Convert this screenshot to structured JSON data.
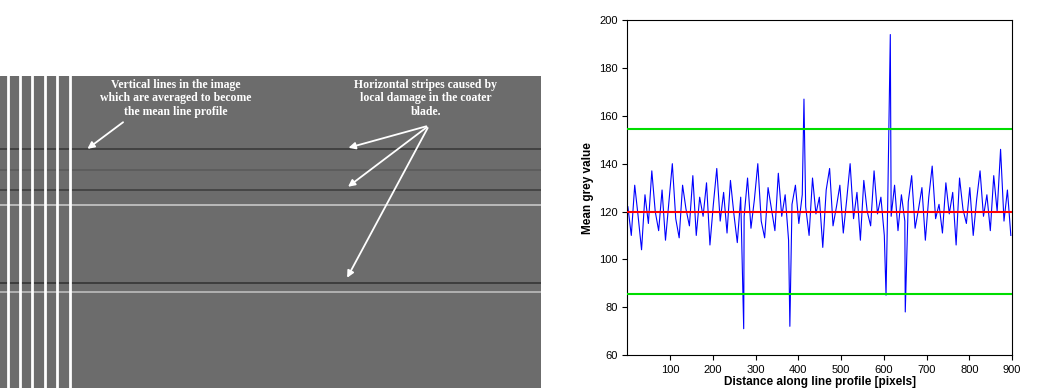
{
  "image_panel": {
    "annotations": [
      {
        "text": "Vertical lines in the image\nwhich are averaged to become\nthe mean line profile"
      },
      {
        "text": "Horizontal stripes caused by\nlocal damage in the coater\nblade."
      }
    ]
  },
  "chart_data": {
    "type": "line",
    "x_label": "Distance along line profile [pixels]",
    "y_label": "Mean grey value",
    "x": [
      1,
      9,
      17,
      25,
      33,
      41,
      49,
      57,
      65,
      73,
      81,
      89,
      97,
      105,
      113,
      121,
      129,
      137,
      145,
      153,
      161,
      169,
      177,
      185,
      193,
      201,
      209,
      217,
      225,
      233,
      241,
      249,
      257,
      265,
      272,
      273,
      281,
      289,
      297,
      305,
      313,
      321,
      329,
      337,
      345,
      353,
      361,
      369,
      377,
      380,
      385,
      393,
      401,
      409,
      413,
      417,
      425,
      433,
      441,
      449,
      457,
      465,
      473,
      481,
      489,
      497,
      505,
      513,
      521,
      529,
      537,
      545,
      553,
      561,
      569,
      577,
      585,
      593,
      601,
      605,
      609,
      615,
      617,
      625,
      633,
      641,
      649,
      650,
      657,
      665,
      673,
      681,
      689,
      697,
      705,
      713,
      721,
      729,
      737,
      745,
      753,
      761,
      769,
      777,
      785,
      793,
      801,
      809,
      817,
      825,
      833,
      841,
      849,
      857,
      865,
      873,
      881,
      889,
      897
    ],
    "values": [
      122,
      110,
      131,
      118,
      104,
      127,
      115,
      137,
      120,
      112,
      129,
      108,
      124,
      140,
      117,
      109,
      131,
      121,
      114,
      135,
      110,
      126,
      118,
      132,
      106,
      123,
      138,
      116,
      128,
      111,
      133,
      119,
      107,
      126,
      71,
      118,
      134,
      113,
      125,
      140,
      116,
      109,
      130,
      121,
      112,
      136,
      118,
      127,
      108,
      72,
      123,
      131,
      115,
      127,
      167,
      122,
      110,
      134,
      119,
      126,
      105,
      129,
      138,
      114,
      122,
      131,
      111,
      125,
      140,
      117,
      128,
      108,
      133,
      120,
      114,
      137,
      119,
      126,
      110,
      85,
      124,
      194,
      118,
      131,
      112,
      127,
      116,
      78,
      124,
      135,
      113,
      121,
      130,
      108,
      126,
      139,
      117,
      123,
      111,
      132,
      119,
      128,
      106,
      134,
      121,
      115,
      130,
      110,
      125,
      137,
      118,
      127,
      112,
      135,
      120,
      146,
      116,
      129,
      110
    ],
    "color": "#0000ff",
    "reference_lines": [
      {
        "value": 120,
        "color": "#ff0000"
      },
      {
        "value": 154.5,
        "color": "#00dd00"
      },
      {
        "value": 85.5,
        "color": "#00dd00"
      }
    ],
    "xlim": [
      0,
      900
    ],
    "xticks": [
      100,
      200,
      300,
      400,
      500,
      600,
      700,
      800,
      900
    ],
    "ylim": [
      60,
      200
    ],
    "yticks": [
      60,
      80,
      100,
      120,
      140,
      160,
      180,
      200
    ],
    "grid": false
  }
}
